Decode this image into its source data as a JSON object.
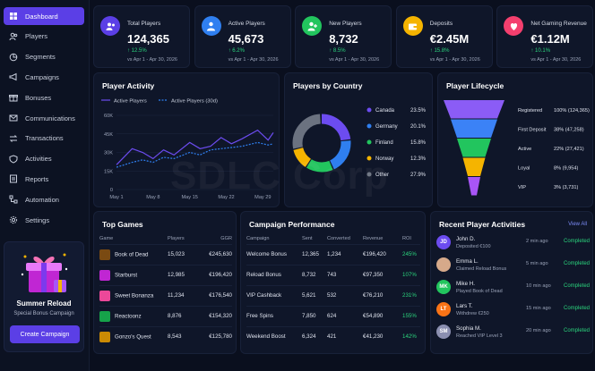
{
  "sidebar": {
    "items": [
      {
        "label": "Dashboard",
        "icon": "grid-icon"
      },
      {
        "label": "Players",
        "icon": "users-icon"
      },
      {
        "label": "Segments",
        "icon": "segments-icon"
      },
      {
        "label": "Campaigns",
        "icon": "megaphone-icon"
      },
      {
        "label": "Bonuses",
        "icon": "gift-icon"
      },
      {
        "label": "Communications",
        "icon": "mail-icon"
      },
      {
        "label": "Transactions",
        "icon": "transactions-icon"
      },
      {
        "label": "Activities",
        "icon": "shield-icon"
      },
      {
        "label": "Reports",
        "icon": "report-icon"
      },
      {
        "label": "Automation",
        "icon": "automation-icon"
      },
      {
        "label": "Settings",
        "icon": "gear-icon"
      }
    ],
    "promo": {
      "title": "Summer Reload",
      "subtitle": "Special Bonus Campaign",
      "button": "Create Campaign"
    }
  },
  "kpis": [
    {
      "title": "Total Players",
      "value": "124,365",
      "change": "↑ 12.5%",
      "period": "vs Apr 1 - Apr 30, 2026",
      "color": "#5b3fe6"
    },
    {
      "title": "Active Players",
      "value": "45,673",
      "change": "↑ 6.2%",
      "period": "vs Apr 1 - Apr 30, 2026",
      "color": "#2f7ff0"
    },
    {
      "title": "New Players",
      "value": "8,732",
      "change": "↑ 8.5%",
      "period": "vs Apr 1 - Apr 30, 2026",
      "color": "#22c55e"
    },
    {
      "title": "Deposits",
      "value": "€2.45M",
      "change": "↑ 15.8%",
      "period": "vs Apr 1 - Apr 30, 2026",
      "color": "#f5b400"
    },
    {
      "title": "Net Gaming Revenue",
      "value": "€1.12M",
      "change": "↑ 10.1%",
      "period": "vs Apr 1 - Apr 30, 2026",
      "color": "#f43f6e"
    }
  ],
  "activity": {
    "title": "Player Activity",
    "legend": [
      "Active Players",
      "Active Players (30d)"
    ],
    "colors": [
      "#6c4cf0",
      "#2f7ff0"
    ]
  },
  "country": {
    "title": "Players by Country",
    "items": [
      {
        "label": "Canada",
        "value": "23.5%",
        "pct": 23.5,
        "color": "#6c4cf0"
      },
      {
        "label": "Germany",
        "value": "20.1%",
        "pct": 20.1,
        "color": "#2f7ff0"
      },
      {
        "label": "Finland",
        "value": "15.8%",
        "pct": 15.8,
        "color": "#22c55e"
      },
      {
        "label": "Norway",
        "value": "12.3%",
        "pct": 12.3,
        "color": "#f5b400"
      },
      {
        "label": "Other",
        "value": "27.9%",
        "pct": 27.9,
        "color": "#6b7280"
      }
    ]
  },
  "lifecycle": {
    "title": "Player Lifecycle",
    "stages": [
      {
        "label": "Registered",
        "value": "100% (124,365)",
        "pct": 100,
        "color": "#8b5cf6"
      },
      {
        "label": "First Deposit",
        "value": "38% (47,258)",
        "pct": 38,
        "color": "#3b82f6"
      },
      {
        "label": "Active",
        "value": "22% (27,421)",
        "pct": 22,
        "color": "#22c55e"
      },
      {
        "label": "Loyal",
        "value": "8% (9,954)",
        "pct": 8,
        "color": "#f5b400"
      },
      {
        "label": "VIP",
        "value": "3% (3,731)",
        "pct": 3,
        "color": "#a855f7"
      }
    ]
  },
  "games": {
    "title": "Top Games",
    "headers": [
      "Game",
      "Players",
      "GGR"
    ],
    "rows": [
      {
        "name": "Book of Dead",
        "players": "15,023",
        "ggr": "€245,630",
        "color": "#7a4a12"
      },
      {
        "name": "Starburst",
        "players": "12,985",
        "ggr": "€196,420",
        "color": "#c026d3"
      },
      {
        "name": "Sweet Bonanza",
        "players": "11,234",
        "ggr": "€176,540",
        "color": "#ec4899"
      },
      {
        "name": "Reactoonz",
        "players": "8,876",
        "ggr": "€154,320",
        "color": "#16a34a"
      },
      {
        "name": "Gonzo's Quest",
        "players": "8,543",
        "ggr": "€125,780",
        "color": "#ca8a04"
      }
    ]
  },
  "campaigns": {
    "title": "Campaign Performance",
    "headers": [
      "Campaign",
      "Sent",
      "Converted",
      "Revenue",
      "ROI"
    ],
    "rows": [
      {
        "name": "Welcome Bonus",
        "sent": "12,365",
        "converted": "1,234",
        "revenue": "€196,420",
        "roi": "245%"
      },
      {
        "name": "Reload Bonus",
        "sent": "8,732",
        "converted": "743",
        "revenue": "€97,350",
        "roi": "107%"
      },
      {
        "name": "VIP Cashback",
        "sent": "5,621",
        "converted": "532",
        "revenue": "€76,210",
        "roi": "231%"
      },
      {
        "name": "Free Spins",
        "sent": "7,850",
        "converted": "624",
        "revenue": "€54,890",
        "roi": "155%"
      },
      {
        "name": "Weekend Boost",
        "sent": "6,324",
        "converted": "421",
        "revenue": "€41,230",
        "roi": "142%"
      }
    ]
  },
  "activities": {
    "title": "Recent Player Activities",
    "view_all": "View All",
    "items": [
      {
        "initials": "JD",
        "name": "John D.",
        "desc": "Deposited €100",
        "time": "2 min ago",
        "status": "Completed",
        "color": "#6c4cf0"
      },
      {
        "initials": "",
        "name": "Emma L.",
        "desc": "Claimed Reload Bonus",
        "time": "5 min ago",
        "status": "Completed",
        "color": "#d6a98a"
      },
      {
        "initials": "MK",
        "name": "Mike H.",
        "desc": "Played Book of Dead",
        "time": "10 min ago",
        "status": "Completed",
        "color": "#22c55e"
      },
      {
        "initials": "LT",
        "name": "Lars T.",
        "desc": "Withdrew €250",
        "time": "15 min ago",
        "status": "Completed",
        "color": "#f97316"
      },
      {
        "initials": "SM",
        "name": "Sophia M.",
        "desc": "Reached VIP Level 3",
        "time": "20 min ago",
        "status": "Completed",
        "color": "#8b8fb0"
      }
    ]
  },
  "watermark": "SDLC Corp",
  "chart_data": [
    {
      "type": "line",
      "title": "Player Activity",
      "x_ticks": [
        "May 1",
        "May 8",
        "May 15",
        "May 22",
        "May 29"
      ],
      "y_ticks": [
        "0",
        "15K",
        "30K",
        "45K",
        "60K"
      ],
      "ylim": [
        0,
        60000
      ],
      "x": [
        1,
        4,
        6,
        8,
        10,
        12,
        15,
        17,
        19,
        21,
        23,
        25,
        28,
        30,
        31
      ],
      "series": [
        {
          "name": "Active Players",
          "values": [
            20000,
            33000,
            30000,
            25000,
            32000,
            28000,
            38000,
            33000,
            35000,
            42000,
            37000,
            41000,
            48000,
            40000,
            46000
          ]
        },
        {
          "name": "Active Players (30d)",
          "values": [
            18000,
            22000,
            24000,
            22000,
            26000,
            25000,
            30000,
            28000,
            32000,
            33000,
            34000,
            35000,
            38000,
            36000,
            37000
          ]
        }
      ],
      "legend": "top"
    },
    {
      "type": "pie",
      "title": "Players by Country",
      "categories": [
        "Canada",
        "Germany",
        "Finland",
        "Norway",
        "Other"
      ],
      "values": [
        23.5,
        20.1,
        15.8,
        12.3,
        27.9
      ]
    }
  ]
}
